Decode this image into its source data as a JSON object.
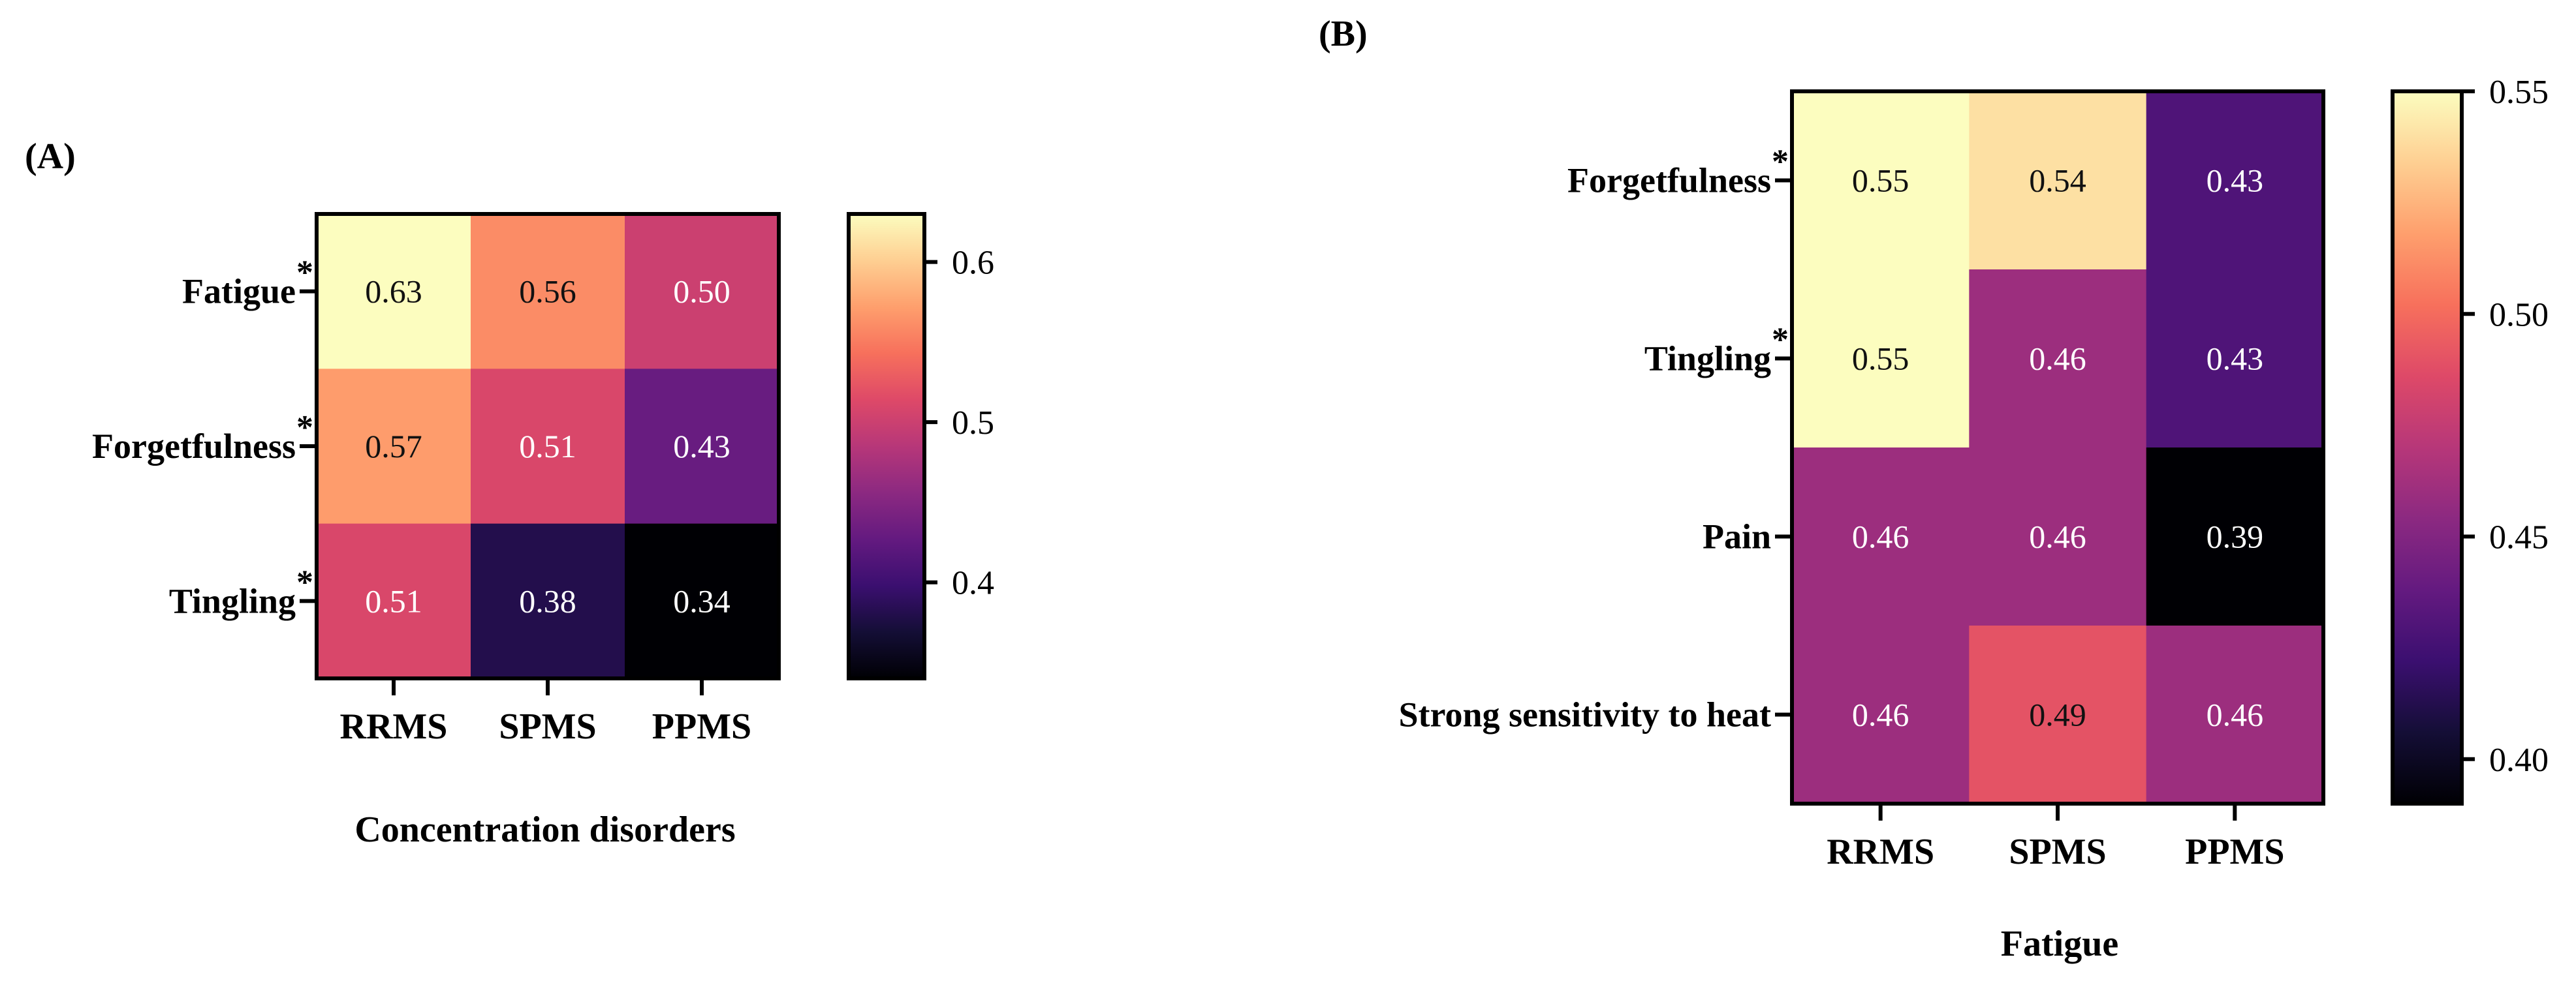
{
  "chart_data": [
    {
      "type": "heatmap",
      "panel_label": "(A)",
      "title": "",
      "xlabel": "Concentration disorders",
      "ylabel": "",
      "columns": [
        "RRMS",
        "SPMS",
        "PPMS"
      ],
      "rows": [
        {
          "label": "Fatigue",
          "marker": "*"
        },
        {
          "label": "Forgetfulness",
          "marker": "*"
        },
        {
          "label": "Tingling",
          "marker": "*"
        }
      ],
      "values": [
        [
          0.63,
          0.56,
          0.5
        ],
        [
          0.57,
          0.51,
          0.43
        ],
        [
          0.51,
          0.38,
          0.34
        ]
      ],
      "value_labels": [
        [
          "0.63",
          "0.56",
          "0.50"
        ],
        [
          "0.57",
          "0.51",
          "0.43"
        ],
        [
          "0.51",
          "0.38",
          "0.34"
        ]
      ],
      "colorbar": {
        "colormap": "magma",
        "range": [
          0.34,
          0.63
        ],
        "ticks": [
          0.4,
          0.5,
          0.6
        ],
        "tick_labels": [
          "0.4",
          "0.5",
          "0.6"
        ]
      }
    },
    {
      "type": "heatmap",
      "panel_label": "(B)",
      "title": "",
      "xlabel": "Fatigue",
      "ylabel": "",
      "columns": [
        "RRMS",
        "SPMS",
        "PPMS"
      ],
      "rows": [
        {
          "label": "Forgetfulness",
          "marker": "*"
        },
        {
          "label": "Tingling",
          "marker": "*"
        },
        {
          "label": "Pain",
          "marker": ""
        },
        {
          "label": "Strong sensitivity to heat",
          "marker": ""
        }
      ],
      "values": [
        [
          0.55,
          0.54,
          0.43
        ],
        [
          0.55,
          0.46,
          0.43
        ],
        [
          0.46,
          0.46,
          0.39
        ],
        [
          0.46,
          0.49,
          0.46
        ]
      ],
      "value_labels": [
        [
          "0.55",
          "0.54",
          "0.43"
        ],
        [
          "0.55",
          "0.46",
          "0.43"
        ],
        [
          "0.46",
          "0.46",
          "0.39"
        ],
        [
          "0.46",
          "0.49",
          "0.46"
        ]
      ],
      "colorbar": {
        "colormap": "magma",
        "range": [
          0.39,
          0.55
        ],
        "ticks": [
          0.4,
          0.45,
          0.5,
          0.55
        ],
        "tick_labels": [
          "0.40",
          "0.45",
          "0.50",
          "0.55"
        ]
      }
    }
  ]
}
